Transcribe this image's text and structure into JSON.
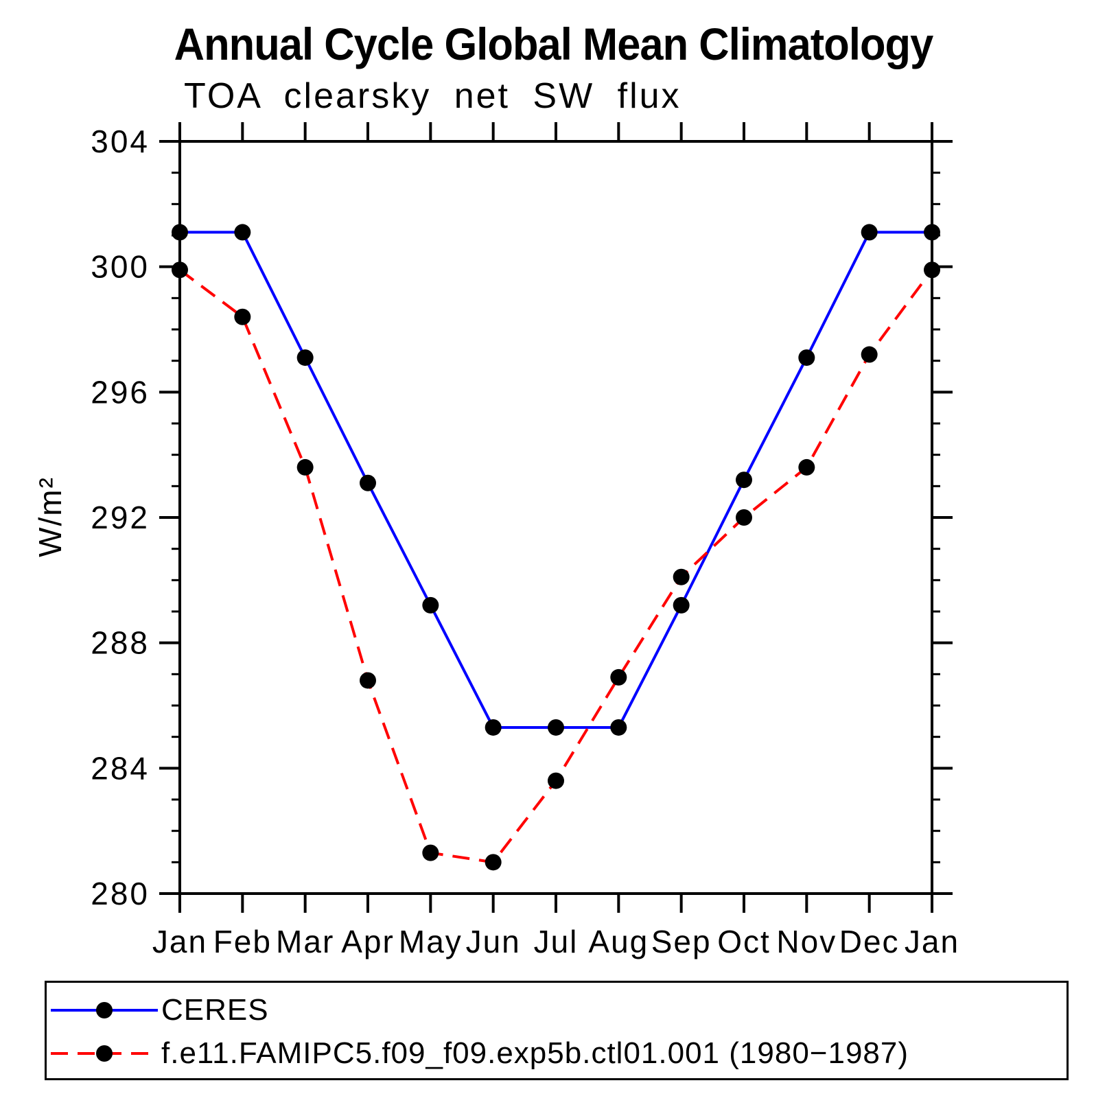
{
  "title": "Annual Cycle Global Mean Climatology",
  "subtitle": "TOA clearsky net SW flux",
  "chart_data": {
    "type": "line",
    "title": "Annual Cycle Global Mean Climatology",
    "subtitle": "TOA clearsky net SW flux",
    "ylabel": "W/m²",
    "x_categories": [
      "Jan",
      "Feb",
      "Mar",
      "Apr",
      "May",
      "Jun",
      "Jul",
      "Aug",
      "Sep",
      "Oct",
      "Nov",
      "Dec",
      "Jan"
    ],
    "ylim": [
      280,
      304
    ],
    "ytick_major_interval": 4,
    "ytick_minor_interval": 1,
    "grid": "off",
    "legend_position": "bottom-left-box",
    "axis_color": "#000000",
    "marker_color": "#000000",
    "series": [
      {
        "name": "CERES",
        "color": "#0000ff",
        "line_style": "solid",
        "values": [
          301.1,
          301.1,
          297.1,
          293.1,
          289.2,
          285.3,
          285.3,
          285.3,
          289.2,
          293.2,
          297.1,
          301.1,
          301.1
        ]
      },
      {
        "name": "f.e11.FAMIPC5.f09_f09.exp5b.ctl01.001 (1980−1987)",
        "color": "#ff0000",
        "line_style": "dashed",
        "values": [
          299.9,
          298.4,
          293.6,
          286.8,
          281.3,
          281.0,
          283.6,
          286.9,
          290.1,
          292.0,
          293.6,
          297.2,
          299.9
        ]
      }
    ]
  }
}
